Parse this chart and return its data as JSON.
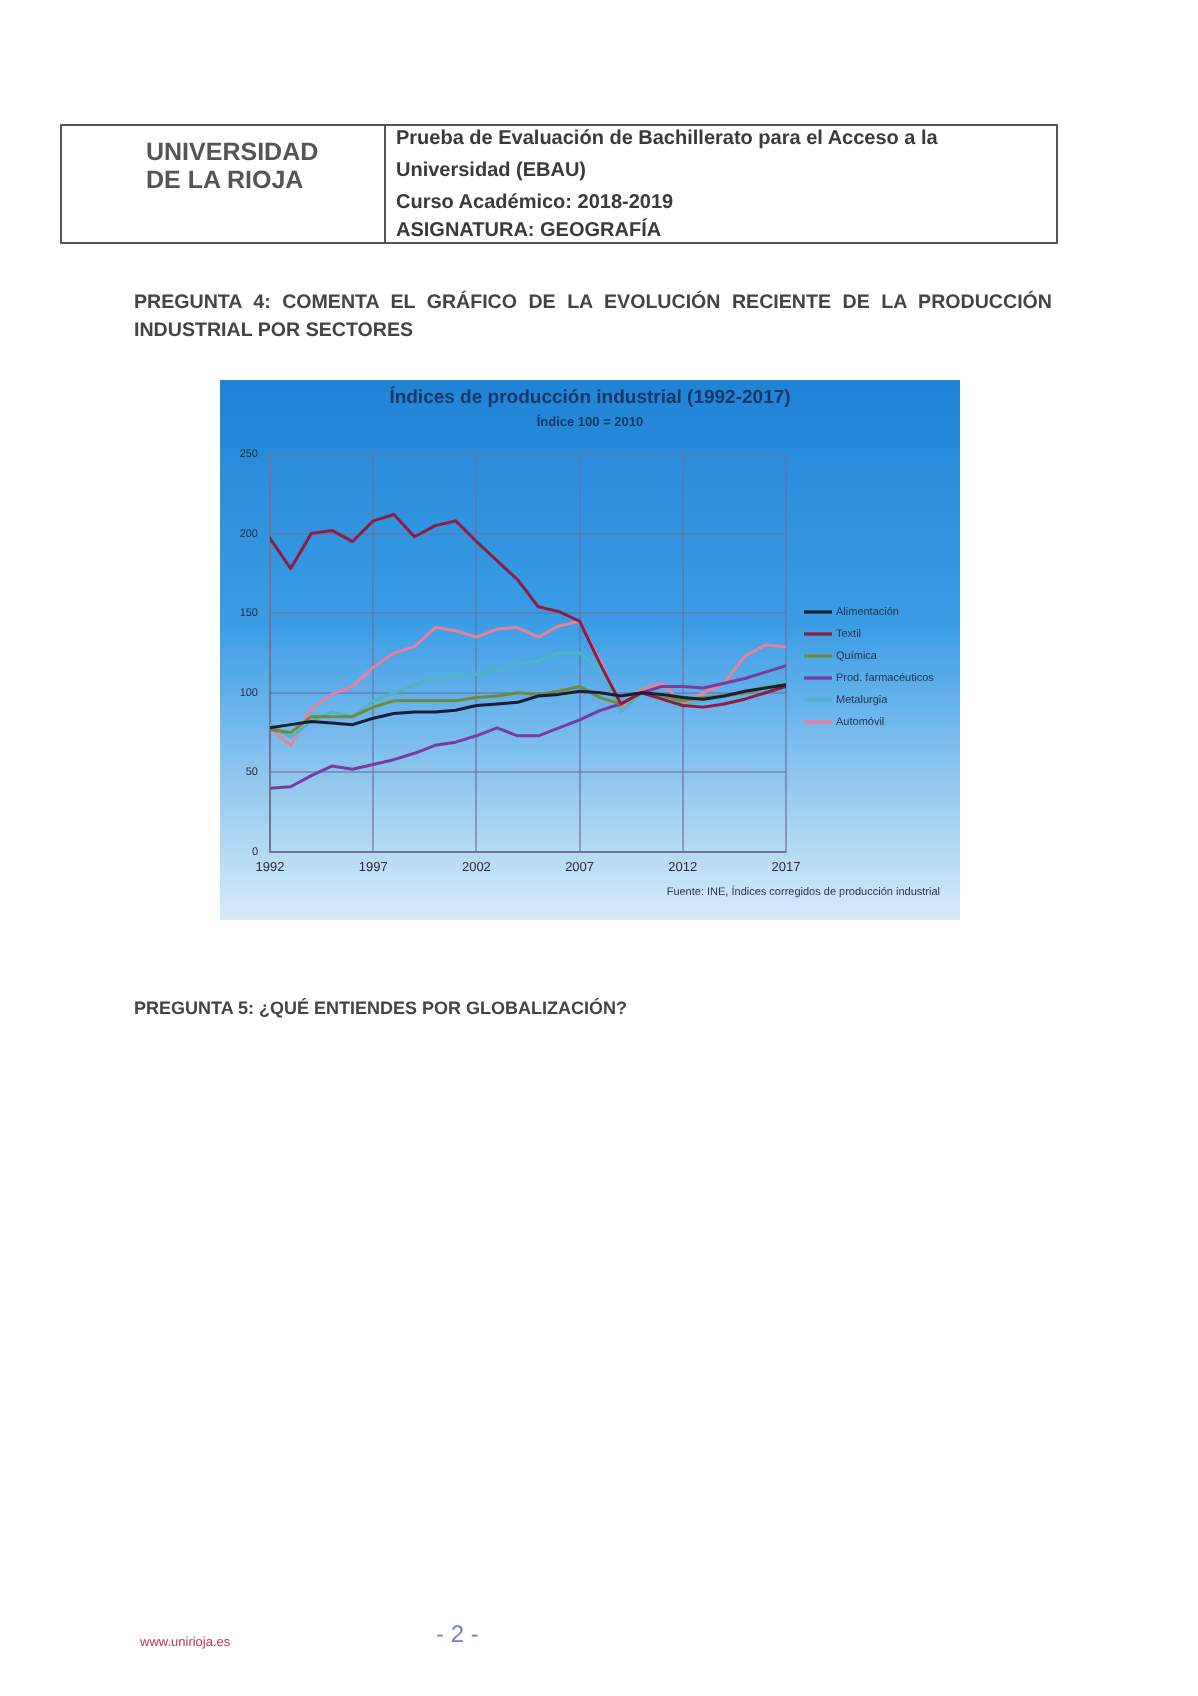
{
  "chart_data": {
    "type": "line",
    "title": "Índices de producción industrial (1992-2017)",
    "subtitle": "Índice 100 = 2010",
    "x": [
      1992,
      1993,
      1994,
      1995,
      1996,
      1997,
      1998,
      1999,
      2000,
      2001,
      2002,
      2003,
      2004,
      2005,
      2006,
      2007,
      2008,
      2009,
      2010,
      2011,
      2012,
      2013,
      2014,
      2015,
      2016,
      2017
    ],
    "xlim": [
      1992,
      2017
    ],
    "xticks": [
      1992,
      1997,
      2002,
      2007,
      2012,
      2017
    ],
    "ylim": [
      0,
      250
    ],
    "yticks": [
      0,
      50,
      100,
      150,
      200,
      250
    ],
    "grid": true,
    "legend": "right",
    "marker": "none",
    "series": [
      {
        "name": "Alimentación",
        "color": "#1c1c34",
        "values": [
          78,
          80,
          82,
          81,
          80,
          84,
          87,
          88,
          88,
          89,
          92,
          93,
          94,
          98,
          99,
          101,
          100,
          98,
          100,
          99,
          97,
          96,
          98,
          101,
          103,
          105
        ]
      },
      {
        "name": "Textil",
        "color": "#8e1c3e",
        "values": [
          197,
          178,
          200,
          202,
          195,
          208,
          212,
          198,
          205,
          208,
          195,
          183,
          171,
          154,
          151,
          145,
          118,
          93,
          100,
          96,
          92,
          91,
          93,
          96,
          100,
          104
        ]
      },
      {
        "name": "Química",
        "color": "#6f8a3c",
        "values": [
          77,
          75,
          85,
          85,
          85,
          91,
          95,
          95,
          95,
          95,
          97,
          98,
          100,
          99,
          101,
          104,
          97,
          93,
          100,
          98,
          95,
          97,
          98,
          100,
          103,
          105
        ]
      },
      {
        "name": "Prod. farmacéuticos",
        "color": "#7a3a9e",
        "values": [
          40,
          41,
          48,
          54,
          52,
          55,
          58,
          62,
          67,
          69,
          73,
          78,
          73,
          73,
          78,
          83,
          89,
          93,
          100,
          104,
          104,
          103,
          106,
          109,
          113,
          117
        ]
      },
      {
        "name": "Metalurgia",
        "color": "#4fb4c4",
        "values": [
          80,
          72,
          82,
          88,
          85,
          95,
          100,
          105,
          110,
          110,
          112,
          115,
          118,
          120,
          125,
          125,
          115,
          88,
          100,
          100,
          92,
          95,
          98,
          100,
          105,
          107
        ]
      },
      {
        "name": "Automóvil",
        "color": "#e8809e",
        "values": [
          78,
          67,
          90,
          99,
          104,
          116,
          125,
          129,
          141,
          139,
          135,
          140,
          141,
          135,
          142,
          145,
          120,
          91,
          102,
          106,
          93,
          100,
          106,
          123,
          130,
          129
        ]
      }
    ],
    "annotations": [
      "UNIVERSIDAD DE LA RIOJA",
      "Prueba de Evaluación de Bachillerato para el Acceso a la Universidad (EBAU)",
      "Curso Académico: 2018-2019",
      "ASIGNATURA: GEOGRAFÍA",
      "PREGUNTA 4: COMENTA EL GRÁFICO DE LA EVOLUCIÓN RECIENTE DE LA PRODUCCIÓN INDUSTRIAL POR SECTORES",
      "Fuente: INE, Índices corregidos de producción industrial",
      "PREGUNTA 5: ¿QUÉ ENTIENDES POR GLOBALIZACIÓN?",
      "www.unirioja.es",
      "- 2 -"
    ]
  }
}
